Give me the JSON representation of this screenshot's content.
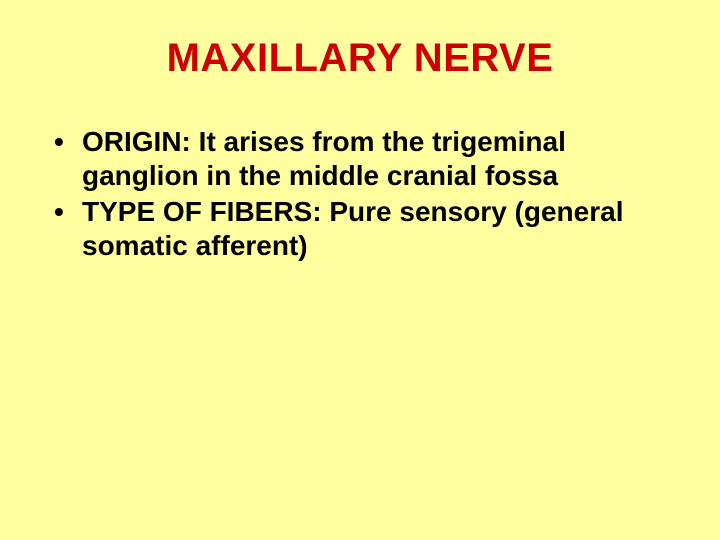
{
  "slide": {
    "title": "MAXILLARY NERVE",
    "title_color": "#cc0000",
    "title_fontsize": 40,
    "background_color": "#ffffa0",
    "body_color": "#000000",
    "body_fontsize": 28,
    "body_fontweight": "bold",
    "bullets": [
      {
        "label": "ORIGIN:",
        "text": " It arises from the trigeminal ganglion in the middle cranial fossa"
      },
      {
        "label": "TYPE OF FIBERS:",
        "text": " Pure sensory (general somatic afferent)"
      }
    ]
  }
}
